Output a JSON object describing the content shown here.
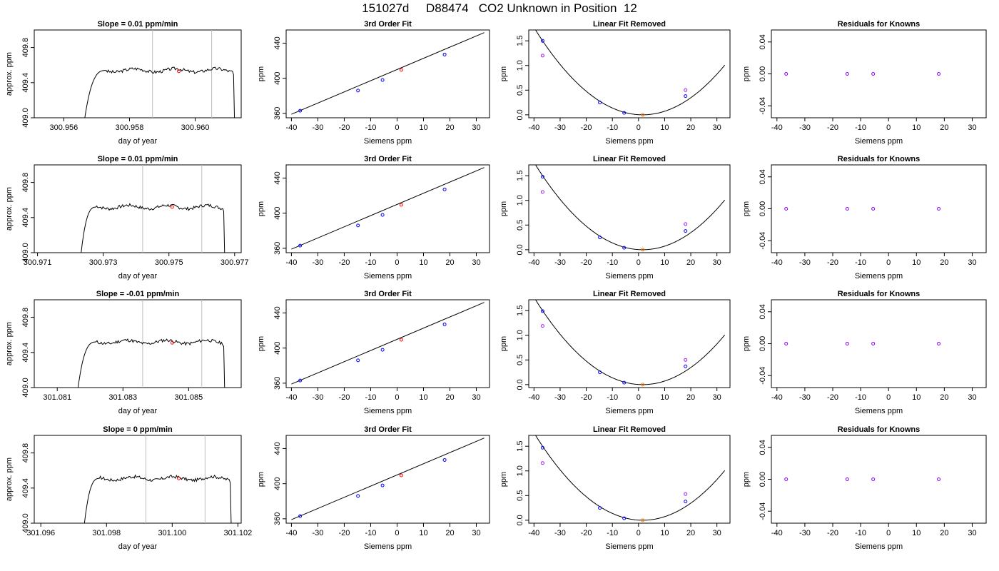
{
  "header": {
    "title": "151027d     D88474   CO2 Unknown in Position  12"
  },
  "colors": {
    "frame": "#000000",
    "data_line": "#000000",
    "window_line": "#bebebe",
    "unknown_point": "#ff0000",
    "unknown_point_removed": "#ff7f00",
    "known_point": "#0000ff",
    "original_point": "#a020f0",
    "residual_point": "#8a00ff"
  },
  "chart_data": [
    {
      "type": "line",
      "row": 1,
      "title": "Slope =  0.01  ppm/min",
      "xlabel": "day of year",
      "ylabel": "approx. ppm",
      "xlim": [
        300.9551,
        300.9614
      ],
      "ylim": [
        409.0,
        410.0
      ],
      "xticks": [
        300.956,
        300.958,
        300.96
      ],
      "xticklabels": [
        "300.956",
        "300.958",
        "300.960"
      ],
      "yticks": [
        409.0,
        409.4,
        409.8
      ],
      "yticklabels": [
        "409.0",
        "409.4",
        "409.8"
      ],
      "vlines": [
        300.9587,
        300.9605
      ],
      "trace": {
        "x0": 300.9566,
        "x1": 300.9612,
        "rise_end": 300.9573,
        "plateau": 409.54,
        "noise": 0.018,
        "seed": 3
      },
      "points": [
        {
          "x": 300.9595,
          "y": 409.53,
          "color": "#ff0000"
        }
      ]
    },
    {
      "type": "scatter",
      "row": 1,
      "title": "3rd Order Fit",
      "xlabel": "Siemens ppm",
      "ylabel": "ppm",
      "xlim": [
        -42,
        35
      ],
      "ylim": [
        355,
        455
      ],
      "xticks": [
        -40,
        -30,
        -20,
        -10,
        0,
        10,
        20,
        30
      ],
      "xticklabels": [
        "-40",
        "-30",
        "-20",
        "-10",
        "0",
        "10",
        "20",
        "30"
      ],
      "yticks": [
        360,
        400,
        440
      ],
      "yticklabels": [
        "360",
        "400",
        "440"
      ],
      "fit_curve": {
        "x": [
          -40,
          33
        ],
        "y": [
          359,
          452
        ]
      },
      "series": [
        {
          "kind": "known",
          "x": [
            -36.7,
            -14.8,
            -5.5,
            18.0
          ],
          "y": [
            363.0,
            386.0,
            398.0,
            427.0
          ],
          "color": "#0000ff"
        },
        {
          "kind": "unknown",
          "x": [
            1.6
          ],
          "y": [
            409.5
          ],
          "color": "#ff0000"
        }
      ]
    },
    {
      "type": "scatter",
      "row": 1,
      "title": "Linear Fit Removed",
      "xlabel": "Siemens ppm",
      "ylabel": "ppm",
      "xlim": [
        -42,
        35
      ],
      "ylim": [
        -0.06,
        1.72
      ],
      "xticks": [
        -40,
        -30,
        -20,
        -10,
        0,
        10,
        20,
        30
      ],
      "xticklabels": [
        "-40",
        "-30",
        "-20",
        "-10",
        "0",
        "10",
        "20",
        "30"
      ],
      "yticks": [
        0.0,
        0.5,
        1.0,
        1.5
      ],
      "yticklabels": [
        "0.0",
        "0.5",
        "1.0",
        "1.5"
      ],
      "fit_curve": {
        "a": 0.001,
        "b": 0.0,
        "c": 0.0,
        "x_range": [
          -40,
          33
        ],
        "vertex": 1.5
      },
      "series": [
        {
          "kind": "known",
          "x": [
            -36.7,
            -14.8,
            -5.5,
            18.0
          ],
          "y": [
            1.5,
            0.25,
            0.04,
            0.38
          ],
          "color": "#0000ff"
        },
        {
          "kind": "original",
          "x": [
            -36.7,
            18.0
          ],
          "y": [
            1.2,
            0.5
          ],
          "color": "#a020f0"
        },
        {
          "kind": "unknown",
          "x": [
            1.6
          ],
          "y": [
            0.0
          ],
          "color": "#ff7f00"
        }
      ]
    },
    {
      "type": "scatter",
      "row": 1,
      "title": "Residuals for Knowns",
      "xlabel": "Siemens ppm",
      "ylabel": "ppm",
      "xlim": [
        -42,
        35
      ],
      "ylim": [
        -0.055,
        0.055
      ],
      "xticks": [
        -40,
        -30,
        -20,
        -10,
        0,
        10,
        20,
        30
      ],
      "xticklabels": [
        "-40",
        "-30",
        "-20",
        "-10",
        "0",
        "10",
        "20",
        "30"
      ],
      "yticks": [
        -0.04,
        0.0,
        0.04
      ],
      "yticklabels": [
        "-0.04",
        "0.00",
        "0.04"
      ],
      "series": [
        {
          "kind": "residual",
          "x": [
            -36.7,
            -14.8,
            -5.5,
            18.0
          ],
          "y": [
            0.0,
            0.0,
            0.0,
            0.0
          ],
          "color": "#8a00ff"
        }
      ]
    },
    {
      "type": "line",
      "row": 2,
      "title": "Slope =  0.01  ppm/min",
      "xlabel": "day of year",
      "ylabel": "approx. ppm",
      "xlim": [
        300.9709,
        300.9772
      ],
      "ylim": [
        409.0,
        410.0
      ],
      "xticks": [
        300.971,
        300.973,
        300.975,
        300.977
      ],
      "xticklabels": [
        "300.971",
        "300.973",
        "300.975",
        "300.977"
      ],
      "yticks": [
        409.0,
        409.4,
        409.8
      ],
      "yticklabels": [
        "409.0",
        "409.4",
        "409.8"
      ],
      "vlines": [
        300.9742,
        300.976
      ],
      "trace": {
        "x0": 300.9723,
        "x1": 300.9767,
        "rise_end": 300.9728,
        "plateau": 409.52,
        "noise": 0.018,
        "seed": 7
      },
      "points": [
        {
          "x": 300.9751,
          "y": 409.52,
          "color": "#ff0000"
        }
      ]
    },
    {
      "type": "scatter",
      "row": 2,
      "title": "3rd Order Fit",
      "xlabel": "Siemens ppm",
      "ylabel": "ppm",
      "xlim": [
        -42,
        35
      ],
      "ylim": [
        355,
        455
      ],
      "xticks": [
        -40,
        -30,
        -20,
        -10,
        0,
        10,
        20,
        30
      ],
      "xticklabels": [
        "-40",
        "-30",
        "-20",
        "-10",
        "0",
        "10",
        "20",
        "30"
      ],
      "yticks": [
        360,
        400,
        440
      ],
      "yticklabels": [
        "360",
        "400",
        "440"
      ],
      "fit_curve": {
        "x": [
          -40,
          33
        ],
        "y": [
          359,
          452
        ]
      },
      "series": [
        {
          "kind": "known",
          "x": [
            -36.7,
            -14.8,
            -5.5,
            18.0
          ],
          "y": [
            363.0,
            386.0,
            398.0,
            427.0
          ],
          "color": "#0000ff"
        },
        {
          "kind": "unknown",
          "x": [
            1.6
          ],
          "y": [
            409.5
          ],
          "color": "#ff0000"
        }
      ]
    },
    {
      "type": "scatter",
      "row": 2,
      "title": "Linear Fit Removed",
      "xlabel": "Siemens ppm",
      "ylabel": "ppm",
      "xlim": [
        -42,
        35
      ],
      "ylim": [
        -0.06,
        1.72
      ],
      "xticks": [
        -40,
        -30,
        -20,
        -10,
        0,
        10,
        20,
        30
      ],
      "xticklabels": [
        "-40",
        "-30",
        "-20",
        "-10",
        "0",
        "10",
        "20",
        "30"
      ],
      "yticks": [
        0.0,
        0.5,
        1.0,
        1.5
      ],
      "yticklabels": [
        "0.0",
        "0.5",
        "1.0",
        "1.5"
      ],
      "fit_curve": {
        "vertex": 1.0
      },
      "series": [
        {
          "kind": "known",
          "x": [
            -36.7,
            -14.8,
            -5.5,
            18.0
          ],
          "y": [
            1.48,
            0.25,
            0.04,
            0.38
          ],
          "color": "#0000ff"
        },
        {
          "kind": "original",
          "x": [
            -36.7,
            18.0
          ],
          "y": [
            1.17,
            0.52
          ],
          "color": "#a020f0"
        },
        {
          "kind": "unknown",
          "x": [
            1.6
          ],
          "y": [
            0.0
          ],
          "color": "#ff7f00"
        }
      ]
    },
    {
      "type": "scatter",
      "row": 2,
      "title": "Residuals for Knowns",
      "xlabel": "Siemens ppm",
      "ylabel": "ppm",
      "xlim": [
        -42,
        35
      ],
      "ylim": [
        -0.055,
        0.055
      ],
      "xticks": [
        -40,
        -30,
        -20,
        -10,
        0,
        10,
        20,
        30
      ],
      "xticklabels": [
        "-40",
        "-30",
        "-20",
        "-10",
        "0",
        "10",
        "20",
        "30"
      ],
      "yticks": [
        -0.04,
        0.0,
        0.04
      ],
      "yticklabels": [
        "-0.04",
        "0.00",
        "0.04"
      ],
      "series": [
        {
          "kind": "residual",
          "x": [
            -36.7,
            -14.8,
            -5.5,
            18.0
          ],
          "y": [
            0.0,
            0.0,
            0.0,
            0.0
          ],
          "color": "#8a00ff"
        }
      ]
    },
    {
      "type": "line",
      "row": 3,
      "title": "Slope =  -0.01  ppm/min",
      "xlabel": "day of year",
      "ylabel": "approx. ppm",
      "xlim": [
        301.0803,
        301.0866
      ],
      "ylim": [
        409.0,
        410.0
      ],
      "xticks": [
        301.081,
        301.083,
        301.085
      ],
      "xticklabels": [
        "301.081",
        "301.083",
        "301.085"
      ],
      "yticks": [
        409.0,
        409.4,
        409.8
      ],
      "yticklabels": [
        "409.0",
        "409.4",
        "409.8"
      ],
      "vlines": [
        301.0836,
        301.0854
      ],
      "trace": {
        "x0": 301.0816,
        "x1": 301.0861,
        "rise_end": 301.0822,
        "plateau": 409.52,
        "noise": 0.018,
        "seed": 11
      },
      "points": [
        {
          "x": 301.0845,
          "y": 409.51,
          "color": "#ff0000"
        }
      ]
    },
    {
      "type": "scatter",
      "row": 3,
      "title": "3rd Order Fit",
      "xlabel": "Siemens ppm",
      "ylabel": "ppm",
      "xlim": [
        -42,
        35
      ],
      "ylim": [
        355,
        455
      ],
      "xticks": [
        -40,
        -30,
        -20,
        -10,
        0,
        10,
        20,
        30
      ],
      "xticklabels": [
        "-40",
        "-30",
        "-20",
        "-10",
        "0",
        "10",
        "20",
        "30"
      ],
      "yticks": [
        360,
        400,
        440
      ],
      "yticklabels": [
        "360",
        "400",
        "440"
      ],
      "fit_curve": {
        "x": [
          -40,
          33
        ],
        "y": [
          359,
          452
        ]
      },
      "series": [
        {
          "kind": "known",
          "x": [
            -36.7,
            -14.8,
            -5.5,
            18.0
          ],
          "y": [
            363.0,
            386.0,
            398.0,
            427.0
          ],
          "color": "#0000ff"
        },
        {
          "kind": "unknown",
          "x": [
            1.6
          ],
          "y": [
            409.5
          ],
          "color": "#ff0000"
        }
      ]
    },
    {
      "type": "scatter",
      "row": 3,
      "title": "Linear Fit Removed",
      "xlabel": "Siemens ppm",
      "ylabel": "ppm",
      "xlim": [
        -42,
        35
      ],
      "ylim": [
        -0.06,
        1.72
      ],
      "xticks": [
        -40,
        -30,
        -20,
        -10,
        0,
        10,
        20,
        30
      ],
      "xticklabels": [
        "-40",
        "-30",
        "-20",
        "-10",
        "0",
        "10",
        "20",
        "30"
      ],
      "yticks": [
        0.0,
        0.5,
        1.0,
        1.5
      ],
      "yticklabels": [
        "0.0",
        "0.5",
        "1.0",
        "1.5"
      ],
      "fit_curve": {
        "vertex": 1.2
      },
      "series": [
        {
          "kind": "known",
          "x": [
            -36.7,
            -14.8,
            -5.5,
            18.0
          ],
          "y": [
            1.49,
            0.25,
            0.04,
            0.37
          ],
          "color": "#0000ff"
        },
        {
          "kind": "original",
          "x": [
            -36.7,
            18.0
          ],
          "y": [
            1.19,
            0.5
          ],
          "color": "#a020f0"
        },
        {
          "kind": "unknown",
          "x": [
            1.6
          ],
          "y": [
            0.0
          ],
          "color": "#ff7f00"
        }
      ]
    },
    {
      "type": "scatter",
      "row": 3,
      "title": "Residuals for Knowns",
      "xlabel": "Siemens ppm",
      "ylabel": "ppm",
      "xlim": [
        -42,
        35
      ],
      "ylim": [
        -0.055,
        0.055
      ],
      "xticks": [
        -40,
        -30,
        -20,
        -10,
        0,
        10,
        20,
        30
      ],
      "xticklabels": [
        "-40",
        "-30",
        "-20",
        "-10",
        "0",
        "10",
        "20",
        "30"
      ],
      "yticks": [
        -0.04,
        0.0,
        0.04
      ],
      "yticklabels": [
        "-0.04",
        "0.00",
        "0.04"
      ],
      "series": [
        {
          "kind": "residual",
          "x": [
            -36.7,
            -14.8,
            -5.5,
            18.0
          ],
          "y": [
            0.0,
            0.0,
            0.0,
            0.0
          ],
          "color": "#8a00ff"
        }
      ]
    },
    {
      "type": "line",
      "row": 4,
      "title": "Slope =  0  ppm/min",
      "xlabel": "day of year",
      "ylabel": "approx. ppm",
      "xlim": [
        301.0958,
        301.1021
      ],
      "ylim": [
        409.0,
        410.0
      ],
      "xticks": [
        301.096,
        301.098,
        301.1,
        301.102
      ],
      "xticklabels": [
        "301.096",
        "301.098",
        "301.100",
        "301.102"
      ],
      "yticks": [
        409.0,
        409.4,
        409.8
      ],
      "yticklabels": [
        "409.0",
        "409.4",
        "409.8"
      ],
      "vlines": [
        301.0992,
        301.101
      ],
      "trace": {
        "x0": 301.0973,
        "x1": 301.1018,
        "rise_end": 301.0978,
        "plateau": 409.51,
        "noise": 0.018,
        "seed": 17
      },
      "points": [
        {
          "x": 301.1002,
          "y": 409.51,
          "color": "#ff0000"
        }
      ]
    },
    {
      "type": "scatter",
      "row": 4,
      "title": "3rd Order Fit",
      "xlabel": "Siemens ppm",
      "ylabel": "ppm",
      "xlim": [
        -42,
        35
      ],
      "ylim": [
        355,
        455
      ],
      "xticks": [
        -40,
        -30,
        -20,
        -10,
        0,
        10,
        20,
        30
      ],
      "xticklabels": [
        "-40",
        "-30",
        "-20",
        "-10",
        "0",
        "10",
        "20",
        "30"
      ],
      "yticks": [
        360,
        400,
        440
      ],
      "yticklabels": [
        "360",
        "400",
        "440"
      ],
      "fit_curve": {
        "x": [
          -40,
          33
        ],
        "y": [
          359,
          452
        ]
      },
      "series": [
        {
          "kind": "known",
          "x": [
            -36.7,
            -14.8,
            -5.5,
            18.0
          ],
          "y": [
            363.0,
            386.0,
            398.0,
            427.0
          ],
          "color": "#0000ff"
        },
        {
          "kind": "unknown",
          "x": [
            1.6
          ],
          "y": [
            409.5
          ],
          "color": "#ff0000"
        }
      ]
    },
    {
      "type": "scatter",
      "row": 4,
      "title": "Linear Fit Removed",
      "xlabel": "Siemens ppm",
      "ylabel": "ppm",
      "xlim": [
        -42,
        35
      ],
      "ylim": [
        -0.06,
        1.72
      ],
      "xticks": [
        -40,
        -30,
        -20,
        -10,
        0,
        10,
        20,
        30
      ],
      "xticklabels": [
        "-40",
        "-30",
        "-20",
        "-10",
        "0",
        "10",
        "20",
        "30"
      ],
      "yticks": [
        0.0,
        0.5,
        1.0,
        1.5
      ],
      "yticklabels": [
        "0.0",
        "0.5",
        "1.0",
        "1.5"
      ],
      "fit_curve": {
        "vertex": 1.0
      },
      "series": [
        {
          "kind": "known",
          "x": [
            -36.7,
            -14.8,
            -5.5,
            18.0
          ],
          "y": [
            1.47,
            0.25,
            0.04,
            0.38
          ],
          "color": "#0000ff"
        },
        {
          "kind": "original",
          "x": [
            -36.7,
            18.0
          ],
          "y": [
            1.16,
            0.53
          ],
          "color": "#a020f0"
        },
        {
          "kind": "unknown",
          "x": [
            1.6
          ],
          "y": [
            0.0
          ],
          "color": "#ff7f00"
        }
      ]
    },
    {
      "type": "scatter",
      "row": 4,
      "title": "Residuals for Knowns",
      "xlabel": "Siemens ppm",
      "ylabel": "ppm",
      "xlim": [
        -42,
        35
      ],
      "ylim": [
        -0.055,
        0.055
      ],
      "xticks": [
        -40,
        -30,
        -20,
        -10,
        0,
        10,
        20,
        30
      ],
      "xticklabels": [
        "-40",
        "-30",
        "-20",
        "-10",
        "0",
        "10",
        "20",
        "30"
      ],
      "yticks": [
        -0.04,
        0.0,
        0.04
      ],
      "yticklabels": [
        "-0.04",
        "0.00",
        "0.04"
      ],
      "series": [
        {
          "kind": "residual",
          "x": [
            -36.7,
            -14.8,
            -5.5,
            18.0
          ],
          "y": [
            0.0,
            0.0,
            0.0,
            0.0
          ],
          "color": "#8a00ff"
        }
      ]
    }
  ]
}
